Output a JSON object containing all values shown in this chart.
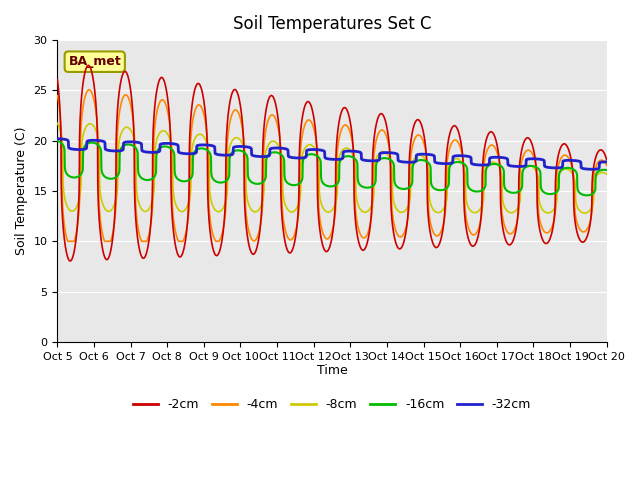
{
  "title": "Soil Temperatures Set C",
  "xlabel": "Time",
  "ylabel": "Soil Temperature (C)",
  "ylim": [
    0,
    30
  ],
  "yticks": [
    0,
    5,
    10,
    15,
    20,
    25,
    30
  ],
  "x_tick_labels": [
    "Oct 5",
    "Oct 6",
    "Oct 7",
    "Oct 8",
    "Oct 9",
    "Oct 10",
    "Oct 11",
    "Oct 12",
    "Oct 13",
    "Oct 14",
    "Oct 15",
    "Oct 16",
    "Oct 17",
    "Oct 18",
    "Oct 19",
    "Oct 20"
  ],
  "annotation_text": "BA_met",
  "series_colors": [
    "#cc0000",
    "#ff8800",
    "#cccc00",
    "#00bb00",
    "#2222cc"
  ],
  "series_labels": [
    "-2cm",
    "-4cm",
    "-8cm",
    "-16cm",
    "-32cm"
  ],
  "fig_bg_color": "#ffffff",
  "plot_bg_color": "#e8e8e8",
  "title_fontsize": 12,
  "axis_label_fontsize": 9,
  "tick_fontsize": 8,
  "legend_fontsize": 9,
  "line_widths": [
    1.2,
    1.2,
    1.2,
    1.5,
    2.0
  ]
}
